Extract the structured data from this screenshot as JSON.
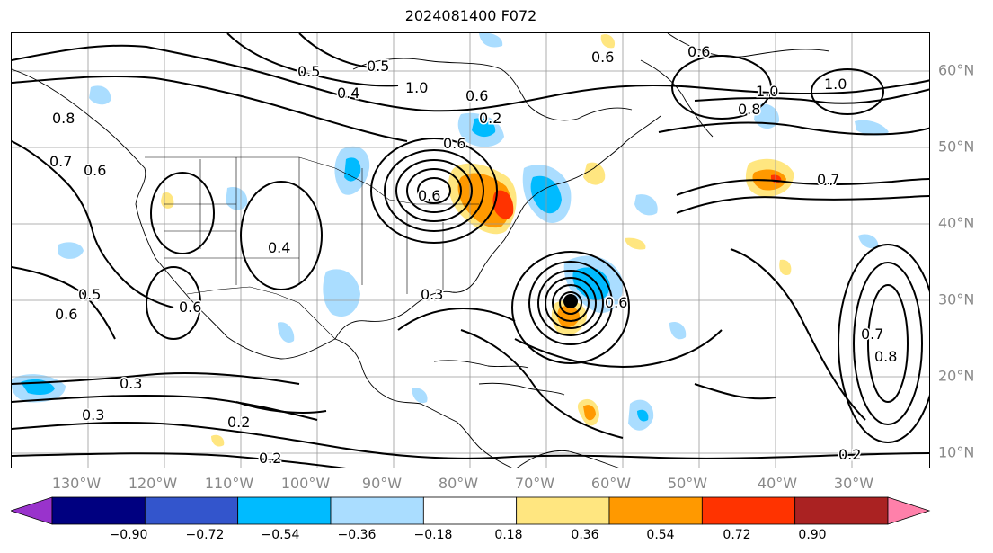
{
  "title": "2024081400 F072",
  "map": {
    "projection": "plate-carree",
    "lon_labels": [
      "130°W",
      "120°W",
      "110°W",
      "100°W",
      "90°W",
      "80°W",
      "70°W",
      "60°W",
      "50°W",
      "40°W",
      "30°W"
    ],
    "lat_labels": [
      "60°N",
      "50°N",
      "40°N",
      "30°N",
      "20°N",
      "10°N"
    ],
    "gridlines": true,
    "contour_color": "#000000",
    "coastline_color": "#000000"
  },
  "contour_labels": [
    "0.5",
    "0.4",
    "1.0",
    "0.6",
    "0.6",
    "0.6",
    "1.0",
    "1.0",
    "0.8",
    "0.7",
    "0.6",
    "0.7",
    "0.8",
    "0.6",
    "0.4",
    "0.5",
    "0.6",
    "0.6",
    "0.3",
    "0.3",
    "0.2",
    "0.2",
    "0.2",
    "0.8",
    "0.7",
    "0.3",
    "0.2",
    "0.6",
    "0.5",
    "0.6"
  ],
  "colorbar": {
    "extend": "both",
    "ticks": [
      "−0.90",
      "−0.72",
      "−0.54",
      "−0.36",
      "−0.18",
      "0.18",
      "0.36",
      "0.54",
      "0.72",
      "0.90"
    ],
    "colors": [
      "#9933cc",
      "#000080",
      "#3355cc",
      "#00bbff",
      "#aaddff",
      "#ffffff",
      "#ffe680",
      "#ff9900",
      "#ff3300",
      "#aa2222",
      "#ff80aa"
    ]
  }
}
